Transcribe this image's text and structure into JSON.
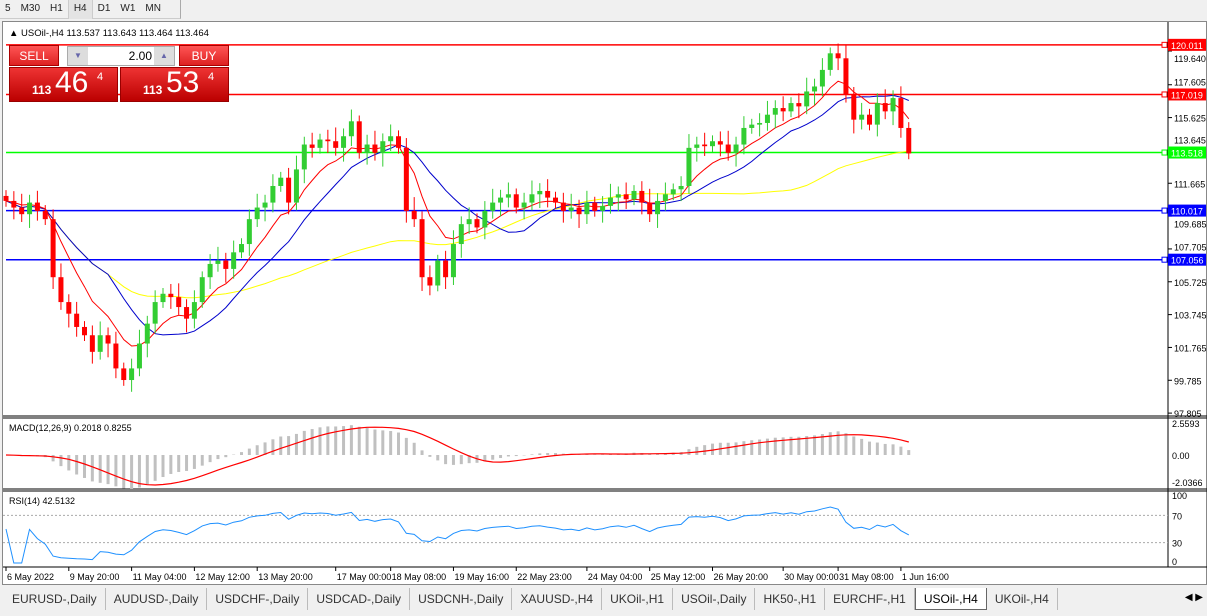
{
  "timeframes": [
    "5",
    "M30",
    "H1",
    "H4",
    "D1",
    "W1",
    "MN"
  ],
  "active_timeframe": "H4",
  "chart": {
    "title": "USOil-,H4  113.537 113.643 113.464 113.464",
    "price_ticks": [
      "119.640",
      "117.605",
      "115.625",
      "113.645",
      "111.665",
      "109.685",
      "107.705",
      "105.725",
      "103.745",
      "101.765",
      "99.785",
      "97.805"
    ],
    "hlines": [
      {
        "price": "120.011",
        "color": "#ff0000"
      },
      {
        "price": "117.019",
        "color": "#ff0000"
      },
      {
        "price": "113.518",
        "color": "#00ff00"
      },
      {
        "price": "110.017",
        "color": "#0000ff"
      },
      {
        "price": "107.056",
        "color": "#0000ff"
      }
    ],
    "date_labels": [
      "6 May 2022",
      "9 May 20:00",
      "11 May 04:00",
      "12 May 12:00",
      "13 May 20:00",
      "17 May 00:00",
      "18 May 08:00",
      "19 May 16:00",
      "22 May 23:00",
      "24 May 04:00",
      "25 May 12:00",
      "26 May 20:00",
      "30 May 00:00",
      "31 May 08:00",
      "1 Jun 16:00"
    ],
    "colors": {
      "bull": "#32cd32",
      "bear": "#ff0000",
      "ma_fast": "#ff0000",
      "ma_mid": "#0000cc",
      "ma_slow": "#ffff00",
      "macd_hist": "#c0c0c0",
      "macd_signal": "#ff0000",
      "rsi": "#1e90ff"
    }
  },
  "chart_data": {
    "type": "candlestick",
    "closes": [
      110.6,
      110.2,
      109.8,
      110.5,
      110.0,
      109.5,
      106.0,
      104.5,
      103.8,
      103.0,
      102.5,
      101.5,
      102.5,
      102.0,
      100.5,
      99.8,
      100.5,
      102.0,
      103.2,
      104.5,
      105.0,
      104.8,
      104.2,
      103.5,
      104.5,
      106.0,
      106.8,
      107.0,
      106.5,
      107.5,
      108.0,
      109.5,
      110.2,
      110.5,
      111.5,
      112.0,
      110.5,
      112.5,
      114.0,
      113.8,
      114.3,
      114.2,
      113.8,
      114.5,
      115.4,
      113.5,
      114.0,
      113.5,
      114.2,
      114.5,
      113.8,
      110.0,
      109.5,
      106.0,
      105.5,
      107.0,
      106.0,
      108.0,
      109.2,
      109.5,
      109.0,
      110.0,
      110.5,
      110.8,
      111.0,
      110.2,
      110.5,
      111.0,
      111.2,
      110.8,
      110.5,
      110.0,
      110.2,
      109.8,
      110.5,
      110.0,
      110.3,
      110.8,
      111.0,
      110.7,
      111.2,
      110.5,
      109.8,
      110.6,
      111.0,
      111.3,
      111.5,
      113.8,
      114.0,
      113.9,
      114.2,
      114.0,
      113.5,
      114.0,
      115.0,
      115.2,
      115.3,
      115.8,
      116.2,
      116.0,
      116.5,
      116.3,
      117.2,
      117.5,
      118.5,
      119.5,
      119.2,
      117.0,
      115.5,
      115.8,
      115.2,
      116.5,
      116.0,
      116.8,
      115.0,
      113.464
    ],
    "ylim": [
      97.805,
      120.5
    ]
  },
  "trade_panel": {
    "sell_label": "SELL",
    "buy_label": "BUY",
    "lot": "2.00",
    "sell_pre": "113",
    "sell_big": "46",
    "sell_sup": "4",
    "buy_pre": "113",
    "buy_big": "53",
    "buy_sup": "4"
  },
  "macd": {
    "label": "MACD(12,26,9) 0.2018 0.8255",
    "ticks": [
      "2.5593",
      "0.00",
      "-2.0366"
    ]
  },
  "rsi": {
    "label": "RSI(14) 42.5132",
    "ticks": [
      "100",
      "70",
      "30",
      "0"
    ]
  },
  "tabs": [
    "EURUSD-,Daily",
    "AUDUSD-,Daily",
    "USDCHF-,Daily",
    "USDCAD-,Daily",
    "USDCNH-,Daily",
    "XAUUSD-,H4",
    "UKOil-,H1",
    "USOil-,Daily",
    "HK50-,H1",
    "EURCHF-,H1",
    "USOil-,H4",
    "UKOil-,H4"
  ],
  "active_tab": "USOil-,H4"
}
